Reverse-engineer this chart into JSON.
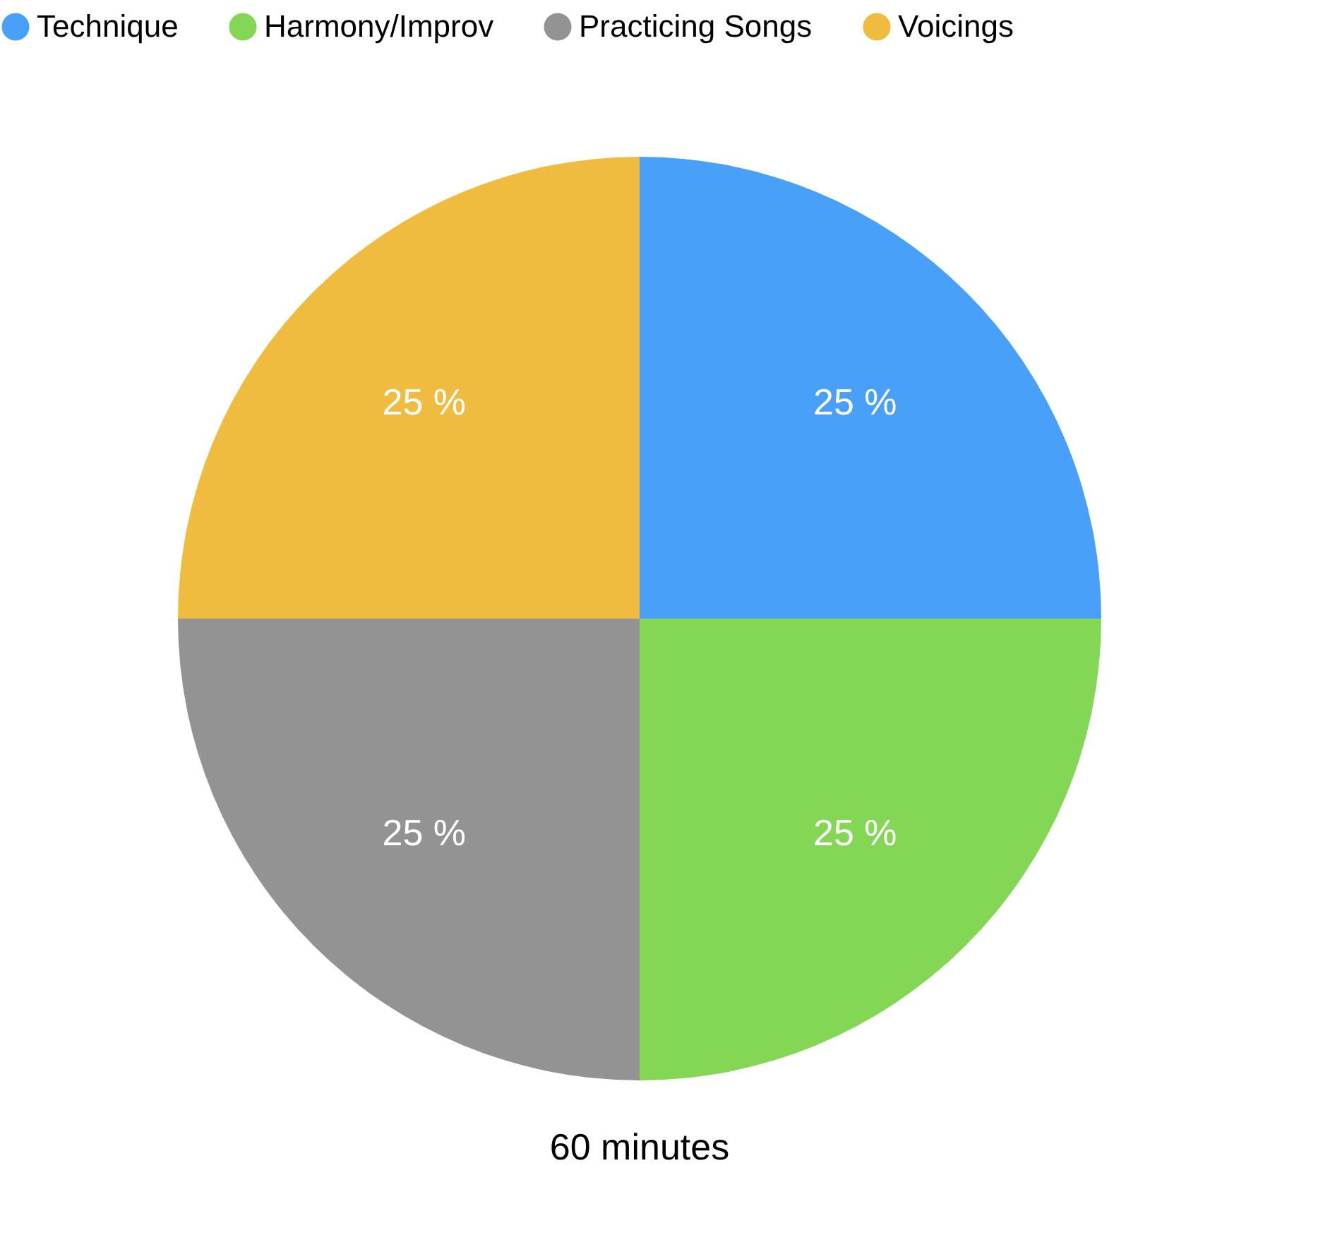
{
  "chart_data": {
    "type": "pie",
    "categories": [
      "Technique",
      "Harmony/Improv",
      "Practicing Songs",
      "Voicings"
    ],
    "values": [
      25,
      25,
      25,
      25
    ],
    "colors": [
      "#48a0f8",
      "#84d655",
      "#939393",
      "#efbc40"
    ],
    "value_labels": [
      "25 %",
      "25 %",
      "25 %",
      "25 %"
    ],
    "annotations": [
      "60 minutes"
    ],
    "legend": "top"
  }
}
